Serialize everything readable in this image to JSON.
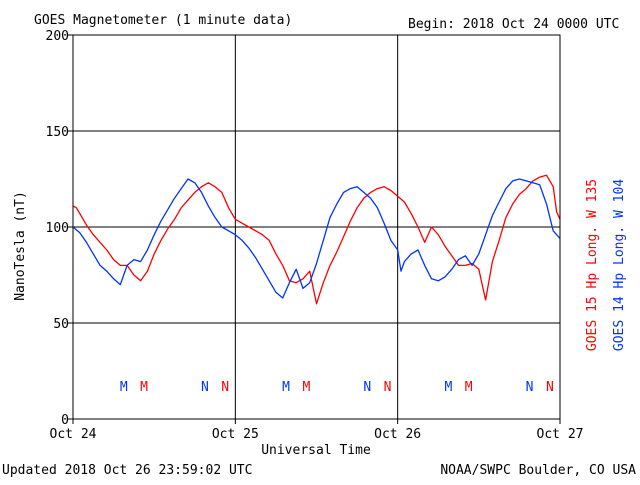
{
  "header": {
    "title": "GOES Magnetometer (1 minute data)",
    "begin_label": "Begin:  2018 Oct 24 0000 UTC"
  },
  "footer": {
    "updated": "Updated 2018 Oct 26 23:59:02 UTC",
    "source": "NOAA/SWPC Boulder, CO USA"
  },
  "colors": {
    "goes15": "#ff0000",
    "goes14": "#0033ff",
    "axes": "#000000",
    "background": "#ffffff"
  },
  "chart_data": {
    "type": "line",
    "title": "GOES Magnetometer (1 minute data)",
    "xlabel": "Universal Time",
    "ylabel": "NanoTesla (nT)",
    "ylim": [
      0,
      200
    ],
    "xlim": [
      0,
      72
    ],
    "x_unit": "hours since 2018 Oct 24 0000 UTC",
    "yticks": [
      0,
      50,
      100,
      150,
      200
    ],
    "x_ticks": [
      {
        "x": 0,
        "label": "Oct 24"
      },
      {
        "x": 24,
        "label": "Oct 25"
      },
      {
        "x": 48,
        "label": "Oct 26"
      },
      {
        "x": 72,
        "label": "Oct 27"
      }
    ],
    "grid": true,
    "legend_position": "right (vertical)",
    "series": [
      {
        "name": "GOES 15 Hp  Long. W 135",
        "color": "#ff0000",
        "x": [
          0,
          0.5,
          1,
          2,
          3,
          4,
          5,
          6,
          7,
          8,
          9,
          10,
          11,
          12,
          13,
          14,
          15,
          16,
          17,
          18,
          19,
          20,
          21,
          22,
          23,
          24,
          25,
          26,
          27,
          28,
          29,
          30,
          31,
          32,
          33,
          34,
          35,
          36,
          37,
          38,
          39,
          40,
          41,
          42,
          43,
          44,
          45,
          46,
          47,
          48,
          49,
          50,
          51,
          52,
          53,
          54,
          55,
          56,
          57,
          58,
          59,
          60,
          61,
          62,
          63,
          64,
          65,
          66,
          67,
          68,
          69,
          70,
          71,
          71.5,
          72
        ],
        "values": [
          111,
          110,
          107,
          101,
          96,
          92,
          88,
          83,
          80,
          80,
          75,
          72,
          77,
          86,
          93,
          99,
          104,
          110,
          114,
          118,
          121,
          123,
          121,
          118,
          110,
          104,
          102,
          100,
          98,
          96,
          93,
          86,
          80,
          72,
          71,
          73,
          77,
          60,
          71,
          80,
          87,
          95,
          103,
          110,
          115,
          118,
          120,
          121,
          119,
          116,
          113,
          107,
          100,
          92,
          100,
          96,
          90,
          85,
          80,
          80,
          81,
          78,
          62,
          82,
          93,
          105,
          112,
          117,
          120,
          124,
          126,
          127,
          121,
          108,
          104
        ]
      },
      {
        "name": "GOES 14 Hp  Long. W 104",
        "color": "#0033ff",
        "x": [
          0,
          1,
          2,
          3,
          4,
          5,
          6,
          7,
          8,
          9,
          10,
          11,
          12,
          13,
          14,
          15,
          16,
          17,
          18,
          19,
          20,
          21,
          22,
          23,
          24,
          25,
          26,
          27,
          28,
          29,
          30,
          31,
          32,
          33,
          34,
          35,
          36,
          37,
          38,
          39,
          40,
          41,
          42,
          43,
          44,
          45,
          46,
          47,
          48,
          48.5,
          49,
          50,
          51,
          52,
          53,
          54,
          55,
          56,
          57,
          58,
          59,
          60,
          61,
          62,
          63,
          64,
          65,
          66,
          67,
          68,
          69,
          70,
          71,
          72
        ],
        "values": [
          100,
          97,
          92,
          86,
          80,
          77,
          73,
          70,
          80,
          83,
          82,
          88,
          96,
          103,
          109,
          115,
          120,
          125,
          123,
          118,
          111,
          105,
          100,
          98,
          96,
          93,
          89,
          84,
          78,
          72,
          66,
          63,
          71,
          78,
          68,
          71,
          81,
          93,
          105,
          112,
          118,
          120,
          121,
          118,
          115,
          110,
          102,
          93,
          88,
          77,
          82,
          86,
          88,
          80,
          73,
          72,
          74,
          78,
          83,
          85,
          80,
          86,
          96,
          106,
          113,
          120,
          124,
          125,
          124,
          123,
          122,
          112,
          98,
          94
        ]
      }
    ],
    "event_markers": [
      {
        "x": 7.5,
        "label": "M",
        "series": "GOES 14 Hp  Long. W 104"
      },
      {
        "x": 10.5,
        "label": "M",
        "series": "GOES 15 Hp  Long. W 135"
      },
      {
        "x": 19.5,
        "label": "N",
        "series": "GOES 14 Hp  Long. W 104"
      },
      {
        "x": 22.5,
        "label": "N",
        "series": "GOES 15 Hp  Long. W 135"
      },
      {
        "x": 31.5,
        "label": "M",
        "series": "GOES 14 Hp  Long. W 104"
      },
      {
        "x": 34.5,
        "label": "M",
        "series": "GOES 15 Hp  Long. W 135"
      },
      {
        "x": 43.5,
        "label": "N",
        "series": "GOES 14 Hp  Long. W 104"
      },
      {
        "x": 46.5,
        "label": "N",
        "series": "GOES 15 Hp  Long. W 135"
      },
      {
        "x": 55.5,
        "label": "M",
        "series": "GOES 14 Hp  Long. W 104"
      },
      {
        "x": 58.5,
        "label": "M",
        "series": "GOES 15 Hp  Long. W 135"
      },
      {
        "x": 67.5,
        "label": "N",
        "series": "GOES 14 Hp  Long. W 104"
      },
      {
        "x": 70.5,
        "label": "N",
        "series": "GOES 15 Hp  Long. W 135"
      }
    ]
  }
}
